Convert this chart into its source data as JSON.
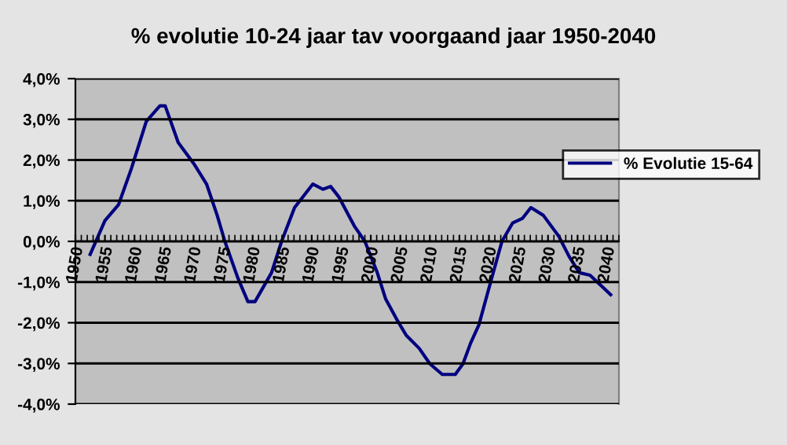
{
  "chart_data": {
    "type": "line",
    "title": "% evolutie 10-24 jaar tav voorgaand jaar 1950-2040",
    "x": [
      1952.5,
      1955,
      1957.3,
      1959.5,
      1962,
      1964.3,
      1965.2,
      1967.4,
      1970,
      1972.2,
      1974,
      1975.3,
      1977.5,
      1979.2,
      1980.4,
      1983.2,
      1984.9,
      1987.1,
      1990.2,
      1991.9,
      1993.2,
      1994.6,
      1997.2,
      1999,
      2001.1,
      2002.5,
      2004.4,
      2006,
      2008.2,
      2010,
      2012.1,
      2014.3,
      2015.6,
      2016.9,
      2018.3,
      2020,
      2022.2,
      2024,
      2025.7,
      2027.1,
      2029.2,
      2031.8,
      2033.6,
      2035.3,
      2037.1,
      2040.6
    ],
    "series": [
      {
        "name": "% Evolutie 15-64",
        "color": "#000080",
        "values": [
          -0.32,
          0.51,
          0.9,
          1.8,
          2.95,
          3.33,
          3.33,
          2.43,
          1.92,
          1.41,
          0.64,
          0,
          -0.9,
          -1.48,
          -1.48,
          -0.77,
          0,
          0.83,
          1.41,
          1.28,
          1.35,
          1.09,
          0.38,
          0,
          -0.77,
          -1.41,
          -1.92,
          -2.31,
          -2.63,
          -3.01,
          -3.27,
          -3.27,
          -3.01,
          -2.5,
          -2.05,
          -1.15,
          0,
          0.45,
          0.57,
          0.83,
          0.64,
          0.13,
          -0.38,
          -0.77,
          -0.83,
          -1.31
        ]
      }
    ],
    "xlim": [
      1950,
      2042
    ],
    "xticks": [
      1950,
      1955,
      1960,
      1965,
      1970,
      1975,
      1980,
      1985,
      1990,
      1995,
      2000,
      2005,
      2010,
      2015,
      2020,
      2025,
      2030,
      2035,
      2040
    ],
    "ylim": [
      -4,
      4
    ],
    "yticks": [
      {
        "value": -4,
        "label": "-4,0%"
      },
      {
        "value": -3,
        "label": "-3,0%"
      },
      {
        "value": -2,
        "label": "-2,0%"
      },
      {
        "value": -1,
        "label": "-1,0%"
      },
      {
        "value": 0,
        "label": "0,0%"
      },
      {
        "value": 1,
        "label": "1,0%"
      },
      {
        "value": 2,
        "label": "2,0%"
      },
      {
        "value": 3,
        "label": "3,0%"
      },
      {
        "value": 4,
        "label": "4,0%"
      }
    ],
    "grid": "y",
    "legend": "right",
    "marker": "none",
    "line_style": "solid"
  }
}
